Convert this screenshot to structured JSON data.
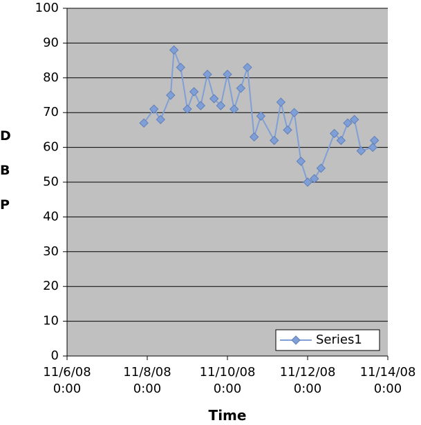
{
  "chart_data": {
    "type": "line",
    "y_label": "DBP",
    "x_label": "Time",
    "x": [
      "2008-11-07T22:00",
      "2008-11-08T04:00",
      "2008-11-08T08:00",
      "2008-11-08T14:00",
      "2008-11-08T16:00",
      "2008-11-08T20:00",
      "2008-11-09T00:00",
      "2008-11-09T04:00",
      "2008-11-09T08:00",
      "2008-11-09T12:00",
      "2008-11-09T16:00",
      "2008-11-09T20:00",
      "2008-11-10T00:00",
      "2008-11-10T04:00",
      "2008-11-10T08:00",
      "2008-11-10T12:00",
      "2008-11-10T16:00",
      "2008-11-10T20:00",
      "2008-11-11T04:00",
      "2008-11-11T08:00",
      "2008-11-11T12:00",
      "2008-11-11T16:00",
      "2008-11-11T20:00",
      "2008-11-12T00:00",
      "2008-11-12T04:00",
      "2008-11-12T08:00",
      "2008-11-12T16:00",
      "2008-11-12T20:00",
      "2008-11-13T00:00",
      "2008-11-13T04:00",
      "2008-11-13T08:00",
      "2008-11-13T15:00",
      "2008-11-13T16:00"
    ],
    "series": [
      {
        "name": "Series1",
        "color": "#7f9fd6",
        "values": [
          67,
          71,
          68,
          75,
          88,
          83,
          71,
          76,
          72,
          81,
          74,
          72,
          81,
          71,
          77,
          83,
          63,
          69,
          62,
          73,
          65,
          70,
          56,
          50,
          51,
          54,
          64,
          62,
          67,
          68,
          59,
          60,
          62
        ]
      }
    ],
    "xlim": [
      "2008-11-06T00:00",
      "2008-11-14T00:00"
    ],
    "xticks": [
      {
        "value": "2008-11-06T00:00",
        "label": "11/6/08\n0:00"
      },
      {
        "value": "2008-11-08T00:00",
        "label": "11/8/08\n0:00"
      },
      {
        "value": "2008-11-10T00:00",
        "label": "11/10/08\n0:00"
      },
      {
        "value": "2008-11-12T00:00",
        "label": "11/12/08\n0:00"
      },
      {
        "value": "2008-11-14T00:00",
        "label": "11/14/08\n0:00"
      }
    ],
    "ylim": [
      0,
      100
    ],
    "yticks": [
      0,
      10,
      20,
      30,
      40,
      50,
      60,
      70,
      80,
      90,
      100
    ],
    "grid": true,
    "legend": "lower right",
    "plot_background": "#c0c0c0"
  }
}
